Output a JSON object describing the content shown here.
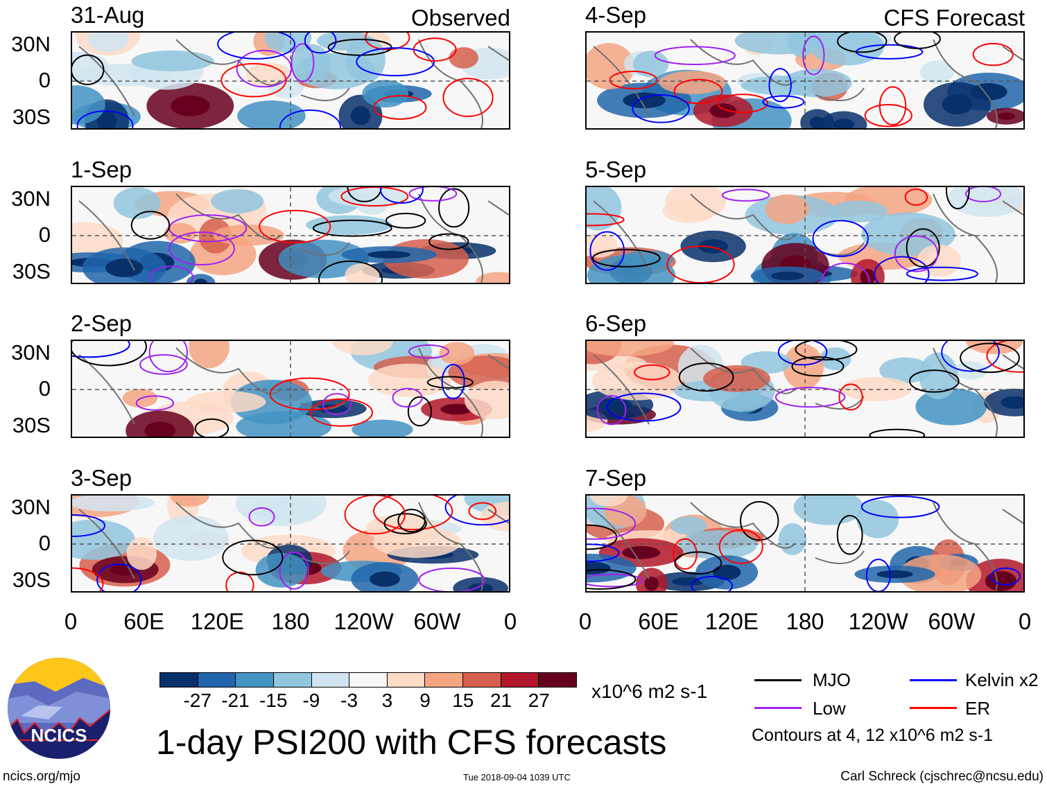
{
  "panels_left": [
    {
      "date": "31-Aug",
      "label": "Observed"
    },
    {
      "date": "1-Sep"
    },
    {
      "date": "2-Sep"
    },
    {
      "date": "3-Sep"
    }
  ],
  "panels_right": [
    {
      "date": "4-Sep",
      "label": "CFS Forecast"
    },
    {
      "date": "5-Sep"
    },
    {
      "date": "6-Sep"
    },
    {
      "date": "7-Sep"
    }
  ],
  "lat_labels": [
    "30N",
    "0",
    "30S"
  ],
  "lon_labels": [
    "0",
    "60E",
    "120E",
    "180",
    "120W",
    "60W",
    "0"
  ],
  "colorbar": {
    "colors": [
      "#08306b",
      "#2166ac",
      "#4393c3",
      "#92c5de",
      "#d1e5f0",
      "#f7f7f7",
      "#fddbc7",
      "#f4a582",
      "#d6604d",
      "#b2182b",
      "#67001f"
    ],
    "ticks": [
      "-27",
      "-21",
      "-15",
      "-9",
      "-3",
      "3",
      "9",
      "15",
      "21",
      "27"
    ],
    "units": "x10^6 m2 s-1"
  },
  "title": "1-day PSI200 with CFS forecasts",
  "legend": [
    {
      "label": "MJO",
      "color": "#000000"
    },
    {
      "label": "Kelvin x2",
      "color": "#0000ff"
    },
    {
      "label": "Low",
      "color": "#a020f0"
    },
    {
      "label": "ER",
      "color": "#ff0000"
    }
  ],
  "contour_note": "Contours at 4, 12 x10^6 m2 s-1",
  "logo_text": "NCICS",
  "footer": {
    "left": "ncics.org/mjo",
    "center": "Tue 2018-09-04 1039 UTC",
    "right": "Carl Schreck (cjschrec@ncsu.edu)"
  }
}
